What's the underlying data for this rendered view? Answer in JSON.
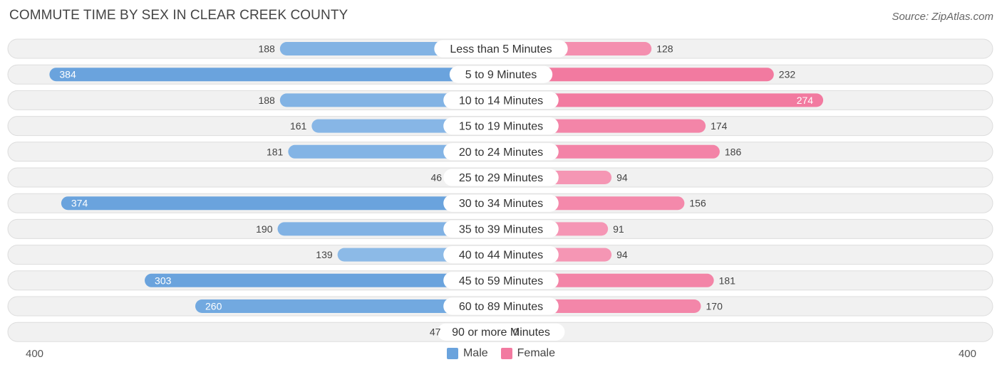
{
  "title": "COMMUTE TIME BY SEX IN CLEAR CREEK COUNTY",
  "source": "Source: ZipAtlas.com",
  "axis": {
    "left_label": "400",
    "right_label": "400"
  },
  "legend": {
    "male_label": "Male",
    "female_label": "Female"
  },
  "colors": {
    "male": "#6aa3dd",
    "male_light": "#a9cdf0",
    "female": "#f27aa0",
    "female_light": "#f7a9c2",
    "row_bg": "#f1f1f1",
    "row_border": "#dddddd"
  },
  "chart_data": {
    "type": "bar",
    "orientation": "diverging-horizontal",
    "title": "COMMUTE TIME BY SEX IN CLEAR CREEK COUNTY",
    "xlim": [
      -400,
      400
    ],
    "categories": [
      "Less than 5 Minutes",
      "5 to 9 Minutes",
      "10 to 14 Minutes",
      "15 to 19 Minutes",
      "20 to 24 Minutes",
      "25 to 29 Minutes",
      "30 to 34 Minutes",
      "35 to 39 Minutes",
      "40 to 44 Minutes",
      "45 to 59 Minutes",
      "60 to 89 Minutes",
      "90 or more Minutes"
    ],
    "series": [
      {
        "name": "Male",
        "values": [
          188,
          384,
          188,
          161,
          181,
          46,
          374,
          190,
          139,
          303,
          260,
          47
        ]
      },
      {
        "name": "Female",
        "values": [
          128,
          232,
          274,
          174,
          186,
          94,
          156,
          91,
          94,
          181,
          170,
          0
        ]
      }
    ]
  }
}
